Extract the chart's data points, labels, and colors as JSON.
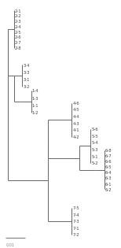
{
  "bg_color": "#ffffff",
  "line_color": "#666666",
  "label_color": "#444444",
  "font_size": 3.8,
  "scale_bar_label": "0.01",
  "scale_bar_color": "#888888",
  "g2_leaves": [
    "2-1",
    "2-2",
    "2-3",
    "2-4",
    "2-5",
    "2-6",
    "2-7",
    "2-8"
  ],
  "g3_leaves": [
    "3-4",
    "3-3",
    "3-1",
    "3-2"
  ],
  "g1_leaves": [
    "1-4",
    "1-3",
    "1-1",
    "1-2"
  ],
  "g4_leaves": [
    "4-6",
    "4-5",
    "4-4",
    "4-3",
    "4-1",
    "4-2"
  ],
  "g5_leaves": [
    "5-6",
    "5-5",
    "5-4",
    "5-3",
    "5-1",
    "5-2"
  ],
  "g6_leaves": [
    "6-8",
    "6-7",
    "6-6",
    "6-5",
    "6-4",
    "6-3",
    "6-1",
    "6-2"
  ],
  "g7_leaves": [
    "7-5",
    "7-4",
    "7-3",
    "7-1",
    "7-2"
  ],
  "sp": 0.03
}
